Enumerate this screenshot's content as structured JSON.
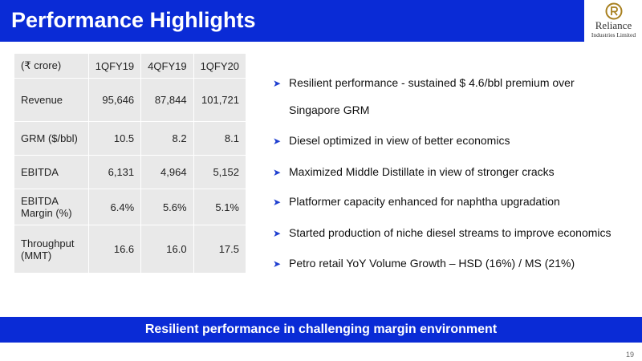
{
  "header": {
    "title": "Performance Highlights"
  },
  "logo": {
    "name": "Reliance",
    "subtitle": "Industries Limited"
  },
  "table": {
    "columns": [
      "(₹ crore)",
      "1QFY19",
      "4QFY19",
      "1QFY20"
    ],
    "rows": [
      {
        "label": "Revenue",
        "values": [
          "95,646",
          "87,844",
          "101,721"
        ]
      },
      {
        "label": "GRM ($/bbl)",
        "values": [
          "10.5",
          "8.2",
          "8.1"
        ]
      },
      {
        "label": "EBITDA",
        "values": [
          "6,131",
          "4,964",
          "5,152"
        ]
      },
      {
        "label": "EBITDA Margin (%)",
        "values": [
          "6.4%",
          "5.6%",
          "5.1%"
        ]
      },
      {
        "label": "Throughput (MMT)",
        "values": [
          "16.6",
          "16.0",
          "17.5"
        ]
      }
    ]
  },
  "bullets": [
    "Resilient performance - sustained $ 4.6/bbl premium over",
    "Singapore GRM",
    "Diesel optimized in view of better economics",
    "Maximized Middle Distillate in view of stronger cracks",
    "Platformer capacity enhanced for naphtha upgradation",
    "Started production of niche diesel streams to improve economics",
    "Petro retail YoY Volume Growth – HSD (16%) / MS (21%)"
  ],
  "footer": {
    "text": "Resilient performance in challenging margin environment"
  },
  "page_number": "19",
  "colors": {
    "brand_blue": "#0a2bd6",
    "table_bg": "#e9e9e9",
    "bullet_arrow": "#1f3fd0"
  }
}
